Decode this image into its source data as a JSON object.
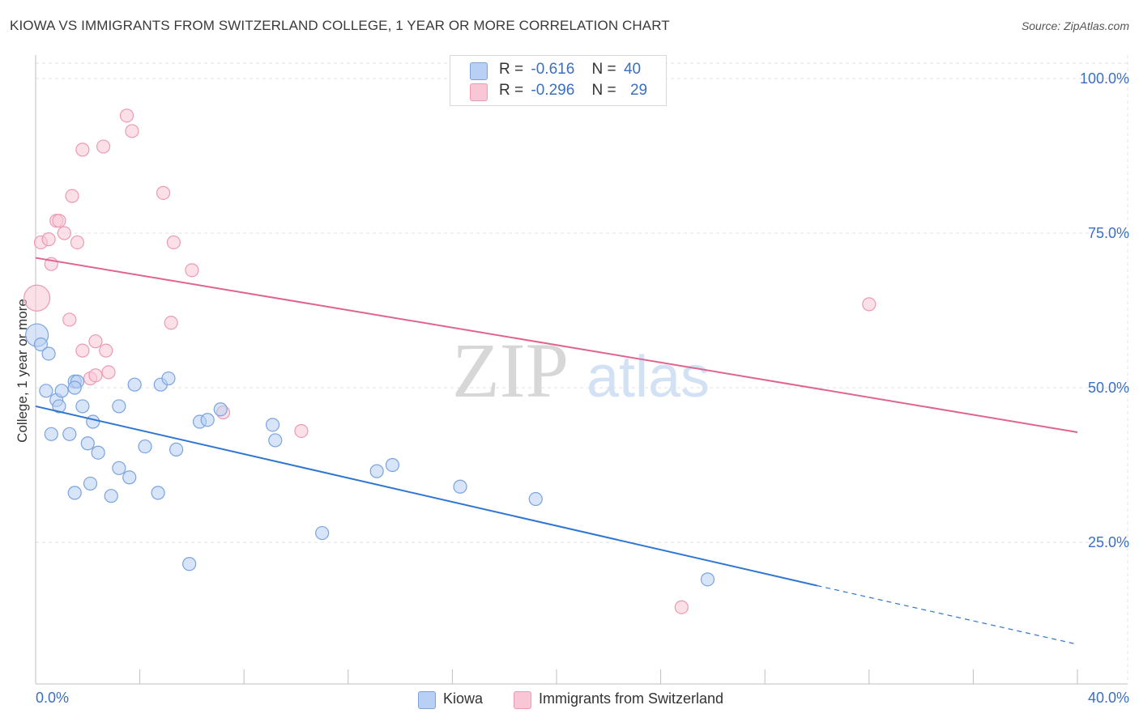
{
  "header": {
    "title": "KIOWA VS IMMIGRANTS FROM SWITZERLAND COLLEGE, 1 YEAR OR MORE CORRELATION CHART",
    "source": "Source: ZipAtlas.com"
  },
  "watermark": {
    "part1": "ZIP",
    "part2": "atlas"
  },
  "legend": {
    "kiowa": {
      "r_label": "R =",
      "r_value": "-0.616",
      "n_label": "N =",
      "n_value": "40"
    },
    "swiss": {
      "r_label": "R =",
      "r_value": "-0.296",
      "n_label": "N =",
      "n_value": "29"
    }
  },
  "colors": {
    "kiowa_fill": "#b8d0f3",
    "kiowa_stroke": "#7aa3de",
    "kiowa_line": "#2f76d2",
    "swiss_fill": "#f9c6d6",
    "swiss_stroke": "#eb9ab4",
    "swiss_line": "#e0648e",
    "axis_text": "#3a6fc4",
    "grid": "#e2e2e2"
  },
  "chart_data": {
    "type": "scatter",
    "title": "KIOWA VS IMMIGRANTS FROM SWITZERLAND COLLEGE, 1 YEAR OR MORE CORRELATION CHART",
    "xlabel": "",
    "ylabel": "College, 1 year or more",
    "xlim": [
      0,
      40
    ],
    "ylim": [
      0,
      105
    ],
    "x_tick_labels": [
      "0.0%",
      "40.0%"
    ],
    "y_tick_labels": [
      "100.0%",
      "75.0%",
      "50.0%",
      "25.0%"
    ],
    "y_ticks": [
      100,
      75,
      50,
      25
    ],
    "grid": true,
    "legend_position": "top-center",
    "series": [
      {
        "name": "Kiowa",
        "points": [
          [
            0.05,
            58.5,
            14
          ],
          [
            0.2,
            57.0,
            8
          ],
          [
            0.5,
            55.5,
            8
          ],
          [
            0.4,
            49.5,
            8
          ],
          [
            0.8,
            48.0,
            8
          ],
          [
            0.9,
            47.0,
            8
          ],
          [
            1.0,
            49.5,
            8
          ],
          [
            1.5,
            51.0,
            8
          ],
          [
            1.6,
            51.0,
            8
          ],
          [
            1.5,
            50.0,
            8
          ],
          [
            1.8,
            47.0,
            8
          ],
          [
            2.2,
            44.5,
            8
          ],
          [
            0.6,
            42.5,
            8
          ],
          [
            1.3,
            42.5,
            8
          ],
          [
            2.0,
            41.0,
            8
          ],
          [
            2.4,
            39.5,
            8
          ],
          [
            3.2,
            47.0,
            8
          ],
          [
            3.8,
            50.5,
            8
          ],
          [
            4.8,
            50.5,
            8
          ],
          [
            5.1,
            51.5,
            8
          ],
          [
            6.3,
            44.5,
            8
          ],
          [
            6.6,
            44.8,
            8
          ],
          [
            7.1,
            46.5,
            8
          ],
          [
            4.2,
            40.5,
            8
          ],
          [
            5.4,
            40.0,
            8
          ],
          [
            3.2,
            37.0,
            8
          ],
          [
            3.6,
            35.5,
            8
          ],
          [
            1.5,
            33.0,
            8
          ],
          [
            2.1,
            34.5,
            8
          ],
          [
            2.9,
            32.5,
            8
          ],
          [
            4.7,
            33.0,
            8
          ],
          [
            9.1,
            44.0,
            8
          ],
          [
            9.2,
            41.5,
            8
          ],
          [
            13.1,
            36.5,
            8
          ],
          [
            13.7,
            37.5,
            8
          ],
          [
            16.3,
            34.0,
            8
          ],
          [
            19.2,
            32.0,
            8
          ],
          [
            11.0,
            26.5,
            8
          ],
          [
            5.9,
            21.5,
            8
          ],
          [
            25.8,
            19.0,
            8
          ]
        ]
      },
      {
        "name": "Immigrants from Switzerland",
        "points": [
          [
            0.05,
            64.5,
            16
          ],
          [
            0.2,
            73.5,
            8
          ],
          [
            0.5,
            74.0,
            8
          ],
          [
            0.6,
            70.0,
            8
          ],
          [
            0.8,
            77.0,
            8
          ],
          [
            0.9,
            77.0,
            8
          ],
          [
            1.1,
            75.0,
            8
          ],
          [
            1.4,
            81.0,
            8
          ],
          [
            1.6,
            73.5,
            8
          ],
          [
            1.8,
            88.5,
            8
          ],
          [
            2.6,
            89.0,
            8
          ],
          [
            3.5,
            94.0,
            8
          ],
          [
            3.7,
            91.5,
            8
          ],
          [
            4.9,
            81.5,
            8
          ],
          [
            5.3,
            73.5,
            8
          ],
          [
            6.0,
            69.0,
            8
          ],
          [
            1.3,
            61.0,
            8
          ],
          [
            2.3,
            57.5,
            8
          ],
          [
            1.8,
            56.0,
            8
          ],
          [
            2.7,
            56.0,
            8
          ],
          [
            2.1,
            51.5,
            8
          ],
          [
            2.3,
            52.0,
            8
          ],
          [
            2.8,
            52.5,
            8
          ],
          [
            5.2,
            60.5,
            8
          ],
          [
            7.2,
            46.0,
            8
          ],
          [
            10.2,
            43.0,
            8
          ],
          [
            32.0,
            63.5,
            8
          ],
          [
            24.8,
            14.5,
            8
          ],
          [
            0.5,
            75.0,
            0
          ]
        ]
      }
    ],
    "trend_lines": [
      {
        "series": "Kiowa",
        "x": [
          0,
          30.0
        ],
        "y": [
          47.0,
          18.0
        ],
        "dashed_extension_to": [
          40,
          8.5
        ]
      },
      {
        "series": "Immigrants from Switzerland",
        "x": [
          0,
          40
        ],
        "y": [
          71.0,
          42.8
        ]
      }
    ]
  },
  "bottom_legend": {
    "kiowa": "Kiowa",
    "swiss": "Immigrants from Switzerland"
  }
}
